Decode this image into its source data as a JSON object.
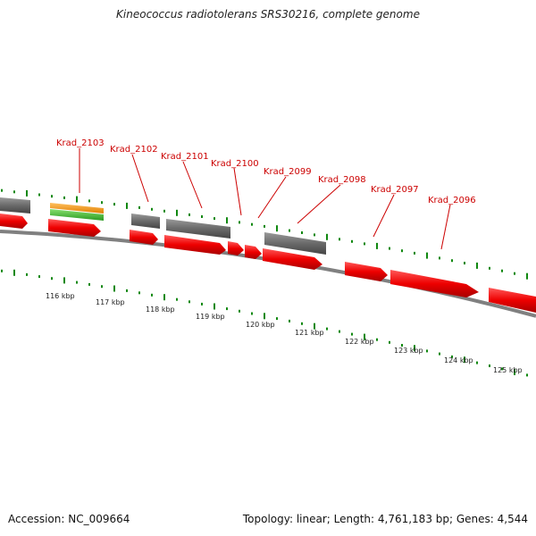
{
  "title": "Kineococcus radiotolerans SRS30216, complete genome",
  "footer": {
    "accession": "Accession: NC_009664",
    "summary": "Topology: linear; Length: 4,761,183 bp; Genes: 4,544"
  },
  "gene_labels": [
    "Krad_2103",
    "Krad_2102",
    "Krad_2101",
    "Krad_2100",
    "Krad_2099",
    "Krad_2098",
    "Krad_2097",
    "Krad_2096"
  ],
  "scale_labels": [
    "116 kbp",
    "117 kbp",
    "118 kbp",
    "119 kbp",
    "120 kbp",
    "121 kbp",
    "122 kbp",
    "123 kbp",
    "124 kbp",
    "125 kbp"
  ],
  "colors": {
    "gene_forward": "#ee0000",
    "gene_other": "#666666",
    "rrna_orange": "#f59a14",
    "rrna_green": "#44bb33",
    "ticks": "#118811",
    "backbone": "#808080",
    "label_text": "#cc0000",
    "leader_line": "#cc0000"
  }
}
